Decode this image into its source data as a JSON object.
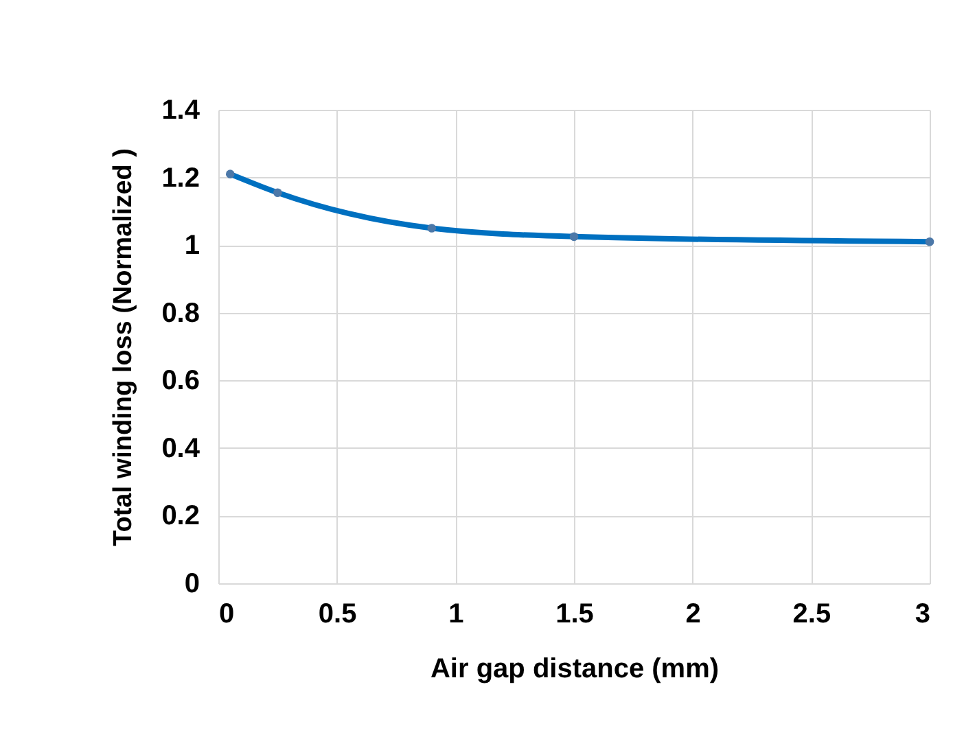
{
  "chart_data": {
    "type": "line",
    "xlabel": "Air gap distance (mm)",
    "ylabel": "Total winding loss (Normalized )",
    "x": [
      0.05,
      0.25,
      0.9,
      1.5,
      3
    ],
    "series": [
      {
        "color": "#0070c0",
        "values": [
          1.21,
          1.155,
          1.05,
          1.025,
          1.01
        ]
      }
    ],
    "xlim": [
      0,
      3
    ],
    "xticks": [
      0,
      0.5,
      1,
      1.5,
      2,
      2.5,
      3
    ],
    "ylim": [
      0,
      1.4
    ],
    "yticks": [
      0,
      0.2,
      0.4,
      0.6,
      0.8,
      1,
      1.2,
      1.4
    ],
    "grid": true,
    "marker": "circle"
  }
}
